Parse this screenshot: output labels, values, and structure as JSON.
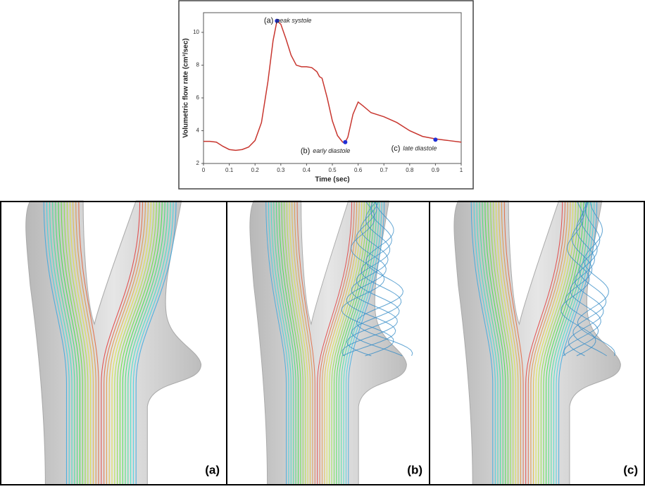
{
  "chart_data": {
    "type": "line",
    "x_label": "Time (sec)",
    "y_label": "Volumetric flow rate (cm³/sec)",
    "x": [
      0,
      0.025,
      0.05,
      0.075,
      0.1,
      0.125,
      0.15,
      0.175,
      0.2,
      0.225,
      0.25,
      0.27,
      0.285,
      0.3,
      0.32,
      0.34,
      0.36,
      0.38,
      0.4,
      0.42,
      0.44,
      0.45,
      0.46,
      0.48,
      0.5,
      0.52,
      0.54,
      0.55,
      0.56,
      0.58,
      0.6,
      0.62,
      0.65,
      0.7,
      0.75,
      0.8,
      0.85,
      0.9,
      0.95,
      1.0
    ],
    "series": [
      {
        "color": "#c8362f",
        "values": [
          3.35,
          3.35,
          3.3,
          3.05,
          2.85,
          2.8,
          2.85,
          3.0,
          3.4,
          4.5,
          7.0,
          9.5,
          10.7,
          10.5,
          9.6,
          8.6,
          8.0,
          7.9,
          7.9,
          7.85,
          7.6,
          7.3,
          7.2,
          6.0,
          4.6,
          3.7,
          3.3,
          3.3,
          3.6,
          5.0,
          5.75,
          5.5,
          5.1,
          4.85,
          4.5,
          4.0,
          3.65,
          3.5,
          3.4,
          3.3
        ]
      }
    ],
    "points": {
      "color": "#1f2fd6",
      "x": [
        0.285,
        0.55,
        0.9
      ],
      "values": [
        10.7,
        3.3,
        3.45
      ],
      "labels": [
        "(a)",
        "(b)",
        "(c)"
      ],
      "texts": [
        "peak systole",
        "early diastole",
        "late diastole"
      ]
    },
    "xlim": [
      0,
      1
    ],
    "ylim": [
      2,
      11.2
    ],
    "xticks": [
      0,
      0.1,
      0.2,
      0.3,
      0.4,
      0.5,
      0.6,
      0.7,
      0.8,
      0.9,
      1
    ],
    "yticks": [
      2,
      4,
      6,
      8,
      10
    ]
  },
  "panels": [
    {
      "label": "(a)"
    },
    {
      "label": "(b)"
    },
    {
      "label": "(c)"
    }
  ]
}
